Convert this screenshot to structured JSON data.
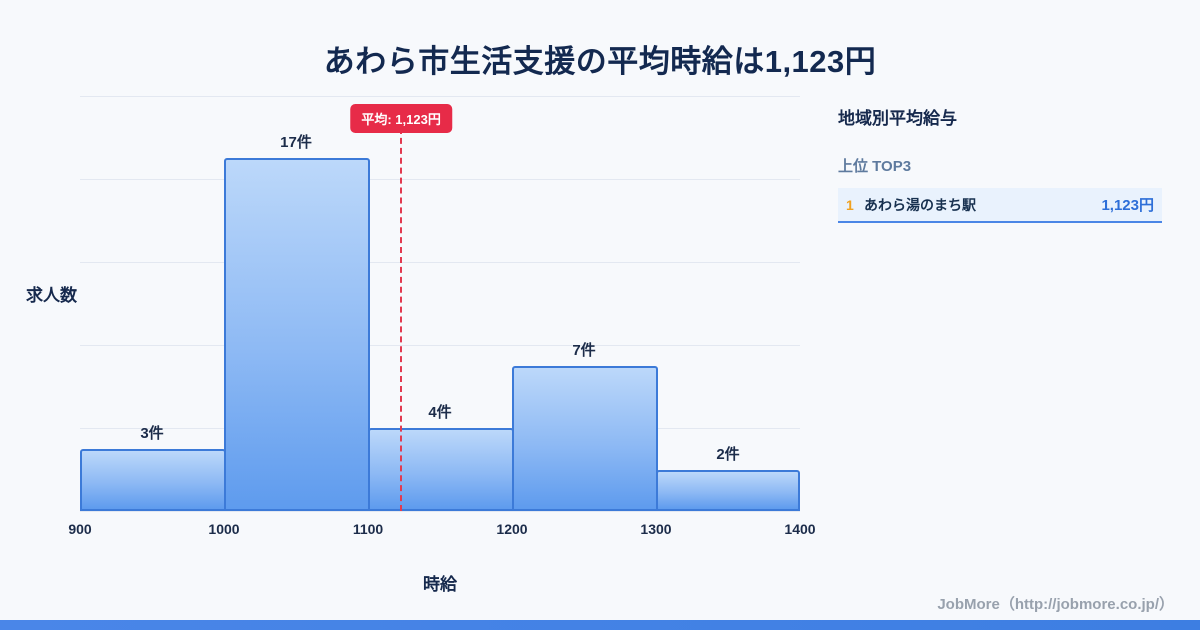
{
  "title": "あわら市生活支援の平均時給は1,123円",
  "chart_data": {
    "type": "bar",
    "title": "あわら市生活支援の平均時給は1,123円",
    "categories": [
      "900-1000",
      "1000-1100",
      "1100-1200",
      "1200-1300",
      "1300-1400"
    ],
    "values": [
      3,
      17,
      4,
      7,
      2
    ],
    "bar_labels": [
      "3件",
      "17件",
      "4件",
      "7件",
      "2件"
    ],
    "x_ticks": [
      "900",
      "1000",
      "1100",
      "1200",
      "1300",
      "1400"
    ],
    "x_range": [
      900,
      1400
    ],
    "xlabel": "時給",
    "ylabel": "求人数",
    "ylim": [
      0,
      20
    ],
    "gridlines": 5,
    "grid": "horizontal",
    "legend": "none",
    "average": {
      "value": 1123,
      "label": "平均: 1,123円"
    }
  },
  "sidebar": {
    "heading": "地域別平均給与",
    "subheading": "上位 TOP3",
    "rows": [
      {
        "rank": "1",
        "name": "あわら湯のまち駅",
        "value": "1,123円"
      }
    ]
  },
  "footer": {
    "credit": "JobMore（http://jobmore.co.jp/）"
  },
  "colors": {
    "background": "#f7f9fc",
    "title_text": "#132950",
    "bar_fill_top": "#bcd8fa",
    "bar_fill_bottom": "#5e9bee",
    "bar_border": "#3c7ad8",
    "average_line": "#e23a50",
    "badge_background": "#e72b48",
    "badge_text": "#ffffff",
    "rank_number": "#f0a120",
    "row_background": "#e9f2fd",
    "value_text": "#2e6fd8",
    "footer_bar": "#3d7ee2",
    "credit_text": "#98a1ad"
  }
}
